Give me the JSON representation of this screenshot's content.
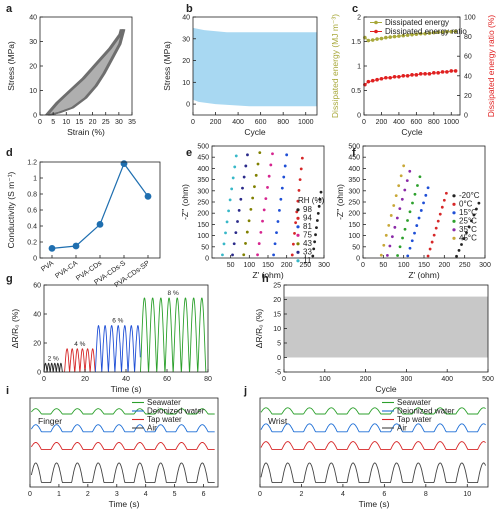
{
  "panel_letters": [
    "a",
    "b",
    "c",
    "d",
    "e",
    "f",
    "g",
    "h",
    "i",
    "j"
  ],
  "chart_data": [
    {
      "id": "a",
      "type": "line",
      "xlabel": "Strain (%)",
      "ylabel": "Stress (MPa)",
      "xlim": [
        0,
        35
      ],
      "ylim": [
        0,
        40
      ],
      "xticks": [
        0,
        5,
        10,
        15,
        20,
        25,
        30,
        35
      ],
      "yticks": [
        0,
        10,
        20,
        30,
        40
      ],
      "loading_curve": [
        [
          3,
          0
        ],
        [
          7,
          5
        ],
        [
          12,
          10
        ],
        [
          17,
          15
        ],
        [
          22,
          21
        ],
        [
          27,
          27
        ],
        [
          31,
          33
        ],
        [
          31.5,
          35
        ]
      ],
      "unloading_curve": [
        [
          31.5,
          35
        ],
        [
          30,
          29
        ],
        [
          27,
          23
        ],
        [
          24,
          17
        ],
        [
          21,
          12
        ],
        [
          17,
          7
        ],
        [
          12,
          3
        ],
        [
          7,
          1
        ],
        [
          3,
          0
        ]
      ],
      "color": "#6e6e6e"
    },
    {
      "id": "b",
      "type": "area",
      "xlabel": "Cycle",
      "ylabel": "Stress (MPa)",
      "xlim": [
        0,
        1100
      ],
      "ylim": [
        -5,
        40
      ],
      "xticks": [
        0,
        200,
        400,
        600,
        800,
        1000
      ],
      "yticks": [
        0,
        10,
        20,
        30,
        40
      ],
      "upper_band": [
        [
          0,
          35
        ],
        [
          100,
          34
        ],
        [
          300,
          33
        ],
        [
          600,
          33
        ],
        [
          900,
          33
        ],
        [
          1100,
          33
        ]
      ],
      "lower_band": [
        [
          0,
          2
        ],
        [
          50,
          1
        ],
        [
          200,
          0
        ],
        [
          500,
          -1
        ],
        [
          800,
          -1
        ],
        [
          1100,
          -1
        ]
      ],
      "color": "#a8d8f2"
    },
    {
      "id": "c",
      "type": "scatter",
      "xlabel": "Cycle",
      "ylabel_left": "Dissipated energy (MJ m⁻³)",
      "ylabel_right": "Dissipated energy ratio (%)",
      "xlim": [
        0,
        1100
      ],
      "ylim_left": [
        0,
        2
      ],
      "ylim_right": [
        0,
        100
      ],
      "xticks": [
        0,
        200,
        400,
        600,
        800,
        1000
      ],
      "yticks_left": [
        0.0,
        0.5,
        1.0,
        1.5,
        2.0
      ],
      "yticks_right": [
        0,
        20,
        40,
        60,
        80,
        100
      ],
      "legend": [
        "Dissipated energy",
        "Dissipated energy ratio"
      ],
      "series": [
        {
          "name": "Dissipated energy",
          "color": "#a8a83a",
          "axis": "left",
          "x": [
            10,
            50,
            100,
            150,
            200,
            250,
            300,
            350,
            400,
            450,
            500,
            550,
            600,
            650,
            700,
            750,
            800,
            850,
            900,
            950,
            1000,
            1050
          ],
          "y": [
            1.58,
            1.52,
            1.53,
            1.55,
            1.56,
            1.58,
            1.59,
            1.6,
            1.61,
            1.62,
            1.63,
            1.64,
            1.65,
            1.66,
            1.66,
            1.67,
            1.68,
            1.69,
            1.69,
            1.7,
            1.7,
            1.71
          ]
        },
        {
          "name": "Dissipated energy ratio",
          "color": "#e02020",
          "axis": "right",
          "x": [
            10,
            50,
            100,
            150,
            200,
            250,
            300,
            350,
            400,
            450,
            500,
            550,
            600,
            650,
            700,
            750,
            800,
            850,
            900,
            950,
            1000,
            1050
          ],
          "y": [
            31,
            34,
            35,
            36,
            37,
            38,
            38,
            39,
            39,
            40,
            40,
            41,
            41,
            42,
            42,
            42,
            43,
            43,
            44,
            44,
            45,
            45
          ]
        }
      ]
    },
    {
      "id": "d",
      "type": "line",
      "ylabel": "Conductivity (S m⁻¹)",
      "categories": [
        "PVA",
        "PVA-CA",
        "PVA-CDs",
        "PVA-CDs-S",
        "PVA-CDs-SP"
      ],
      "values": [
        0.12,
        0.15,
        0.42,
        1.18,
        0.77
      ],
      "ylim": [
        0,
        1.2
      ],
      "yticks": [
        0.0,
        0.2,
        0.4,
        0.6,
        0.8,
        1.0,
        1.2
      ],
      "color": "#1f6fb0"
    },
    {
      "id": "e",
      "type": "scatter",
      "xlabel": "Z' (ohm)",
      "ylabel": "-Z'' (ohm)",
      "xlim": [
        0,
        300
      ],
      "ylim": [
        0,
        500
      ],
      "xticks": [
        50,
        100,
        150,
        200,
        250,
        300
      ],
      "yticks": [
        0,
        50,
        100,
        150,
        200,
        250,
        300,
        350,
        400,
        450,
        500
      ],
      "legend_title": "RH (%)",
      "series": [
        {
          "name": "98",
          "color": "#222222",
          "x0": 270,
          "x1": 292,
          "ymax": 300
        },
        {
          "name": "94",
          "color": "#d62728",
          "x0": 215,
          "x1": 242,
          "ymax": 455
        },
        {
          "name": "81",
          "color": "#1f4fd6",
          "x0": 165,
          "x1": 200,
          "ymax": 470
        },
        {
          "name": "75",
          "color": "#d6258f",
          "x0": 122,
          "x1": 162,
          "ymax": 475
        },
        {
          "name": "43",
          "color": "#808000",
          "x0": 85,
          "x1": 128,
          "ymax": 480
        },
        {
          "name": "33",
          "color": "#2a2a8a",
          "x0": 55,
          "x1": 95,
          "ymax": 470
        },
        {
          "name": "11",
          "color": "#38b8c8",
          "x0": 28,
          "x1": 65,
          "ymax": 465
        }
      ]
    },
    {
      "id": "f",
      "type": "scatter",
      "xlabel": "Z' (ohm)",
      "ylabel": "-Z'' (ohm)",
      "xlim": [
        0,
        300
      ],
      "ylim": [
        0,
        500
      ],
      "xticks": [
        0,
        50,
        100,
        150,
        200,
        250,
        300
      ],
      "yticks": [
        0,
        50,
        100,
        150,
        200,
        250,
        300,
        350,
        400,
        450,
        500
      ],
      "series": [
        {
          "name": "-20°C",
          "color": "#222222",
          "x0": 230,
          "x1": 285,
          "ymax": 250
        },
        {
          "name": "0°C",
          "color": "#d62728",
          "x0": 160,
          "x1": 205,
          "ymax": 295
        },
        {
          "name": "15°C",
          "color": "#1f4fd6",
          "x0": 110,
          "x1": 160,
          "ymax": 320
        },
        {
          "name": "25°C",
          "color": "#2ca02c",
          "x0": 85,
          "x1": 140,
          "ymax": 370
        },
        {
          "name": "35°C",
          "color": "#8a2aa8",
          "x0": 60,
          "x1": 115,
          "ymax": 395
        },
        {
          "name": "45°C",
          "color": "#c8a838",
          "x0": 45,
          "x1": 100,
          "ymax": 420
        }
      ]
    },
    {
      "id": "g",
      "type": "line",
      "xlabel": "Time (s)",
      "ylabel": "ΔR/R₀ (%)",
      "xlim": [
        0,
        80
      ],
      "ylim": [
        0,
        60
      ],
      "xticks": [
        0,
        20,
        40,
        60,
        80
      ],
      "yticks": [
        0,
        20,
        40,
        60
      ],
      "series": [
        {
          "name": "2 %",
          "color": "#222222",
          "t0": 0,
          "t1": 9,
          "amplitude": 6,
          "period": 1.5
        },
        {
          "name": "4 %",
          "color": "#d62728",
          "t0": 10,
          "t1": 25,
          "amplitude": 16,
          "period": 2.5
        },
        {
          "name": "6 %",
          "color": "#1f4fd6",
          "t0": 25,
          "t1": 47,
          "amplitude": 32,
          "period": 3.2
        },
        {
          "name": "8 %",
          "color": "#2ca02c",
          "t0": 47,
          "t1": 79,
          "amplitude": 51,
          "period": 4.0
        }
      ]
    },
    {
      "id": "h",
      "type": "area",
      "xlabel": "Cycle",
      "ylabel": "ΔR/R₀ (%)",
      "xlim": [
        0,
        500
      ],
      "ylim": [
        -5,
        25
      ],
      "xticks": [
        0,
        100,
        200,
        300,
        400,
        500
      ],
      "yticks": [
        -5,
        0,
        5,
        10,
        15,
        20,
        25
      ],
      "band_low": 0,
      "band_high": 21,
      "color": "#c8c8c8"
    },
    {
      "id": "i",
      "type": "line",
      "title": "Finger",
      "xlabel": "Time (s)",
      "xlim": [
        0,
        6.5
      ],
      "xticks": [
        0,
        1,
        2,
        3,
        4,
        5,
        6
      ],
      "legend": [
        "Seawater",
        "Deionized water",
        "Tap water",
        "Air"
      ],
      "series": [
        {
          "name": "Seawater",
          "color": "#2ca02c",
          "offset": 0.82,
          "amplitude": 0.06,
          "period": 0.72
        },
        {
          "name": "Deionized water",
          "color": "#1f6fd6",
          "offset": 0.62,
          "amplitude": 0.08,
          "period": 0.72
        },
        {
          "name": "Tap water",
          "color": "#d62728",
          "offset": 0.42,
          "amplitude": 0.08,
          "period": 0.72
        },
        {
          "name": "Air",
          "color": "#444444",
          "offset": 0.05,
          "amplitude": 0.22,
          "period": 0.72
        }
      ]
    },
    {
      "id": "j",
      "type": "line",
      "title": "Wrist",
      "xlabel": "Time (s)",
      "xlim": [
        0,
        11
      ],
      "xticks": [
        0,
        2,
        4,
        6,
        8,
        10
      ],
      "legend": [
        "Seawater",
        "Deionized water",
        "Tap water",
        "Air"
      ],
      "series": [
        {
          "name": "Seawater",
          "color": "#2ca02c",
          "offset": 0.82,
          "amplitude": 0.07,
          "period": 1.05
        },
        {
          "name": "Deionized water",
          "color": "#1f6fd6",
          "offset": 0.62,
          "amplitude": 0.09,
          "period": 1.05
        },
        {
          "name": "Tap water",
          "color": "#d62728",
          "offset": 0.42,
          "amplitude": 0.09,
          "period": 1.05
        },
        {
          "name": "Air",
          "color": "#444444",
          "offset": 0.05,
          "amplitude": 0.22,
          "period": 1.05
        }
      ]
    }
  ]
}
